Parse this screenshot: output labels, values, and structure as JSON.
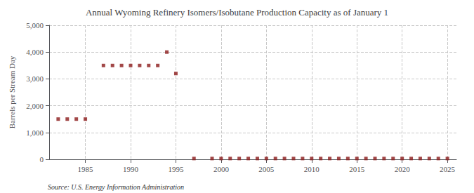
{
  "chart_data": {
    "type": "scatter",
    "title": "Annual Wyoming Refinery Isomers/Isobutane Production Capacity as of January 1",
    "ylabel": "Barrels per Stream Day",
    "annotation": "Source: U.S. Energy Information Administration",
    "x": [
      1982,
      1983,
      1984,
      1985,
      1987,
      1988,
      1989,
      1990,
      1991,
      1992,
      1993,
      1994,
      1995,
      1997,
      1999,
      2000,
      2001,
      2002,
      2003,
      2004,
      2005,
      2006,
      2007,
      2008,
      2009,
      2010,
      2011,
      2012,
      2013,
      2014,
      2015,
      2016,
      2017,
      2018,
      2019,
      2020,
      2021,
      2022,
      2023,
      2024,
      2025
    ],
    "values": [
      1500,
      1500,
      1500,
      1500,
      3500,
      3500,
      3500,
      3500,
      3500,
      3500,
      3500,
      4000,
      3200,
      30,
      30,
      30,
      30,
      30,
      30,
      30,
      30,
      30,
      30,
      30,
      30,
      30,
      30,
      30,
      30,
      30,
      30,
      30,
      30,
      30,
      30,
      30,
      30,
      30,
      30,
      30,
      30
    ],
    "color": "#8b1a1a",
    "marker": "square",
    "xlim": [
      1981,
      2026
    ],
    "xticks": [
      1985,
      1990,
      1995,
      2000,
      2005,
      2010,
      2015,
      2020,
      2025
    ],
    "ylim": [
      0,
      5000
    ],
    "yticks": [
      0,
      {
        "value": 1000,
        "label": "1,000"
      },
      {
        "value": 2000,
        "label": "2,000"
      },
      {
        "value": 3000,
        "label": "3,000"
      },
      {
        "value": 4000,
        "label": "4,000"
      },
      {
        "value": 5000,
        "label": "5,000"
      }
    ],
    "grid": true
  }
}
